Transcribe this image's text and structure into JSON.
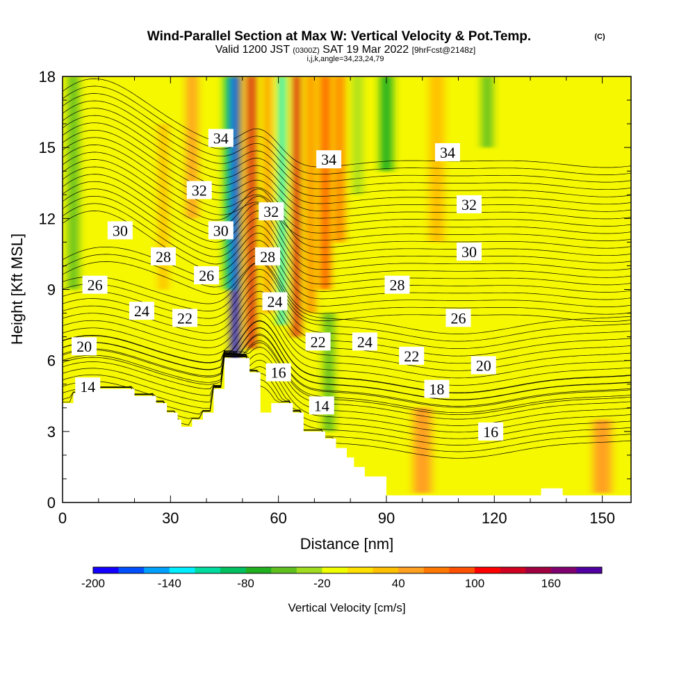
{
  "header": {
    "title": "Wind-Parallel Section at Max W: Vertical Velocity & Pot.Temp.",
    "copyright": "(C)",
    "valid_prefix": "Valid 1200 JST",
    "valid_utc": "(0300Z)",
    "valid_date": "SAT 19 Mar 2022",
    "forecast": "[9hrFcst@2148z]",
    "indices": "i,j,k,angle=34,23,24,79"
  },
  "chart_data": {
    "type": "heatmap",
    "title": "Wind-Parallel Section at Max W: Vertical Velocity & Pot.Temp.",
    "xlabel": "Distance [nm]",
    "ylabel": "Height [Kft MSL]",
    "xlim": [
      0,
      158
    ],
    "ylim": [
      0,
      18
    ],
    "x_ticks": [
      "0",
      "30",
      "60",
      "90",
      "120",
      "150"
    ],
    "y_ticks": [
      "0",
      "3",
      "6",
      "9",
      "12",
      "15",
      "18"
    ],
    "colorbar": {
      "label": "Vertical Velocity [cm/s]",
      "tick_labels": [
        "-200",
        "-140",
        "-80",
        "-20",
        "40",
        "100",
        "160"
      ],
      "min": -200,
      "step": 20,
      "colors": [
        "#1400ff",
        "#0050ff",
        "#00a0ff",
        "#00eeff",
        "#00dca0",
        "#00c060",
        "#20b020",
        "#60c020",
        "#a0dc20",
        "#f0ff00",
        "#ffe000",
        "#ffc000",
        "#ffa020",
        "#ff7800",
        "#ff5000",
        "#ff0000",
        "#d00020",
        "#a00040",
        "#800070",
        "#5000a0"
      ]
    },
    "terrain": [
      [
        0,
        4.2
      ],
      [
        3,
        4.2
      ],
      [
        3,
        4.6
      ],
      [
        9,
        4.6
      ],
      [
        9,
        4.8
      ],
      [
        20,
        4.8
      ],
      [
        20,
        4.5
      ],
      [
        26,
        4.5
      ],
      [
        26,
        4.2
      ],
      [
        29,
        4.2
      ],
      [
        29,
        3.8
      ],
      [
        32,
        3.8
      ],
      [
        32,
        3.5
      ],
      [
        33,
        3.5
      ],
      [
        33,
        3.2
      ],
      [
        36,
        3.2
      ],
      [
        36,
        3.5
      ],
      [
        39,
        3.5
      ],
      [
        39,
        3.8
      ],
      [
        42,
        3.8
      ],
      [
        42,
        4.8
      ],
      [
        45,
        4.8
      ],
      [
        45,
        6.1
      ],
      [
        52,
        6.1
      ],
      [
        52,
        5.5
      ],
      [
        55,
        5.5
      ],
      [
        55,
        3.8
      ],
      [
        58,
        3.8
      ],
      [
        58,
        4.2
      ],
      [
        64,
        4.2
      ],
      [
        64,
        3.8
      ],
      [
        67,
        3.8
      ],
      [
        67,
        3.0
      ],
      [
        73,
        3.0
      ],
      [
        73,
        2.7
      ],
      [
        76,
        2.7
      ],
      [
        76,
        2.3
      ],
      [
        79,
        2.3
      ],
      [
        79,
        1.9
      ],
      [
        81,
        1.9
      ],
      [
        81,
        1.5
      ],
      [
        84,
        1.5
      ],
      [
        84,
        1.1
      ],
      [
        90,
        1.1
      ],
      [
        90,
        0.3
      ],
      [
        133,
        0.3
      ],
      [
        133,
        0.6
      ],
      [
        139,
        0.6
      ],
      [
        139,
        0.3
      ],
      [
        158,
        0.3
      ]
    ],
    "w_features": [
      {
        "x": 48,
        "w": 2.2,
        "y0": 6.0,
        "y1": 18,
        "value": -200
      },
      {
        "x": 46,
        "w": 2.0,
        "y0": 9,
        "y1": 18,
        "value": -100
      },
      {
        "x": 52.5,
        "w": 2.0,
        "y0": 6.5,
        "y1": 18,
        "value": 120
      },
      {
        "x": 57,
        "w": 1.5,
        "y0": 8,
        "y1": 18,
        "value": 60
      },
      {
        "x": 61,
        "w": 1.8,
        "y0": 7.5,
        "y1": 18,
        "value": -140
      },
      {
        "x": 65,
        "w": 1.8,
        "y0": 7,
        "y1": 18,
        "value": 120
      },
      {
        "x": 69,
        "w": 2.0,
        "y0": 8,
        "y1": 18,
        "value": 60
      },
      {
        "x": 73,
        "w": 2.5,
        "y0": 9,
        "y1": 18,
        "value": 80
      },
      {
        "x": 77,
        "w": 2.5,
        "y0": 11,
        "y1": 18,
        "value": 60
      },
      {
        "x": 74,
        "w": 3.0,
        "y0": 3,
        "y1": 8,
        "value": -60
      },
      {
        "x": 82,
        "w": 2.5,
        "y0": 13,
        "y1": 18,
        "value": -40
      },
      {
        "x": 90,
        "w": 3.5,
        "y0": 14,
        "y1": 18,
        "value": -80
      },
      {
        "x": 3,
        "w": 3.0,
        "y0": 9,
        "y1": 18,
        "value": -60
      },
      {
        "x": 36,
        "w": 3.0,
        "y0": 12,
        "y1": 18,
        "value": 40
      },
      {
        "x": 28,
        "w": 2.5,
        "y0": 9,
        "y1": 16,
        "value": 20
      },
      {
        "x": 104,
        "w": 4.0,
        "y0": 11,
        "y1": 18,
        "value": 20
      },
      {
        "x": 118,
        "w": 3.0,
        "y0": 15,
        "y1": 18,
        "value": -60
      },
      {
        "x": 100,
        "w": 5.0,
        "y0": 0.4,
        "y1": 4,
        "value": 40
      },
      {
        "x": 150,
        "w": 5.0,
        "y0": 0.4,
        "y1": 3.5,
        "value": 40
      }
    ],
    "theta_levels": [
      14,
      16,
      18,
      20,
      22,
      24,
      26,
      28,
      30,
      32,
      34
    ],
    "theta_labels": [
      {
        "text": "14",
        "x": 7,
        "y": 4.9
      },
      {
        "text": "14",
        "x": 72,
        "y": 4.1
      },
      {
        "text": "16",
        "x": 60,
        "y": 5.5
      },
      {
        "text": "16",
        "x": 119,
        "y": 3.0
      },
      {
        "text": "18",
        "x": 104,
        "y": 4.8
      },
      {
        "text": "20",
        "x": 6,
        "y": 6.6
      },
      {
        "text": "20",
        "x": 117,
        "y": 5.8
      },
      {
        "text": "22",
        "x": 34,
        "y": 7.8
      },
      {
        "text": "22",
        "x": 71,
        "y": 6.8
      },
      {
        "text": "22",
        "x": 97,
        "y": 6.2
      },
      {
        "text": "24",
        "x": 22,
        "y": 8.1
      },
      {
        "text": "24",
        "x": 59,
        "y": 8.5
      },
      {
        "text": "24",
        "x": 84,
        "y": 6.8
      },
      {
        "text": "26",
        "x": 9,
        "y": 9.2
      },
      {
        "text": "26",
        "x": 40,
        "y": 9.6
      },
      {
        "text": "26",
        "x": 110,
        "y": 7.8
      },
      {
        "text": "28",
        "x": 28,
        "y": 10.4
      },
      {
        "text": "28",
        "x": 57,
        "y": 10.4
      },
      {
        "text": "28",
        "x": 93,
        "y": 9.2
      },
      {
        "text": "30",
        "x": 16,
        "y": 11.5
      },
      {
        "text": "30",
        "x": 44,
        "y": 11.5
      },
      {
        "text": "30",
        "x": 113,
        "y": 10.6
      },
      {
        "text": "32",
        "x": 38,
        "y": 13.2
      },
      {
        "text": "32",
        "x": 58,
        "y": 12.3
      },
      {
        "text": "32",
        "x": 113,
        "y": 12.6
      },
      {
        "text": "34",
        "x": 44,
        "y": 15.4
      },
      {
        "text": "34",
        "x": 74,
        "y": 14.5
      },
      {
        "text": "34",
        "x": 107,
        "y": 14.8
      }
    ]
  }
}
